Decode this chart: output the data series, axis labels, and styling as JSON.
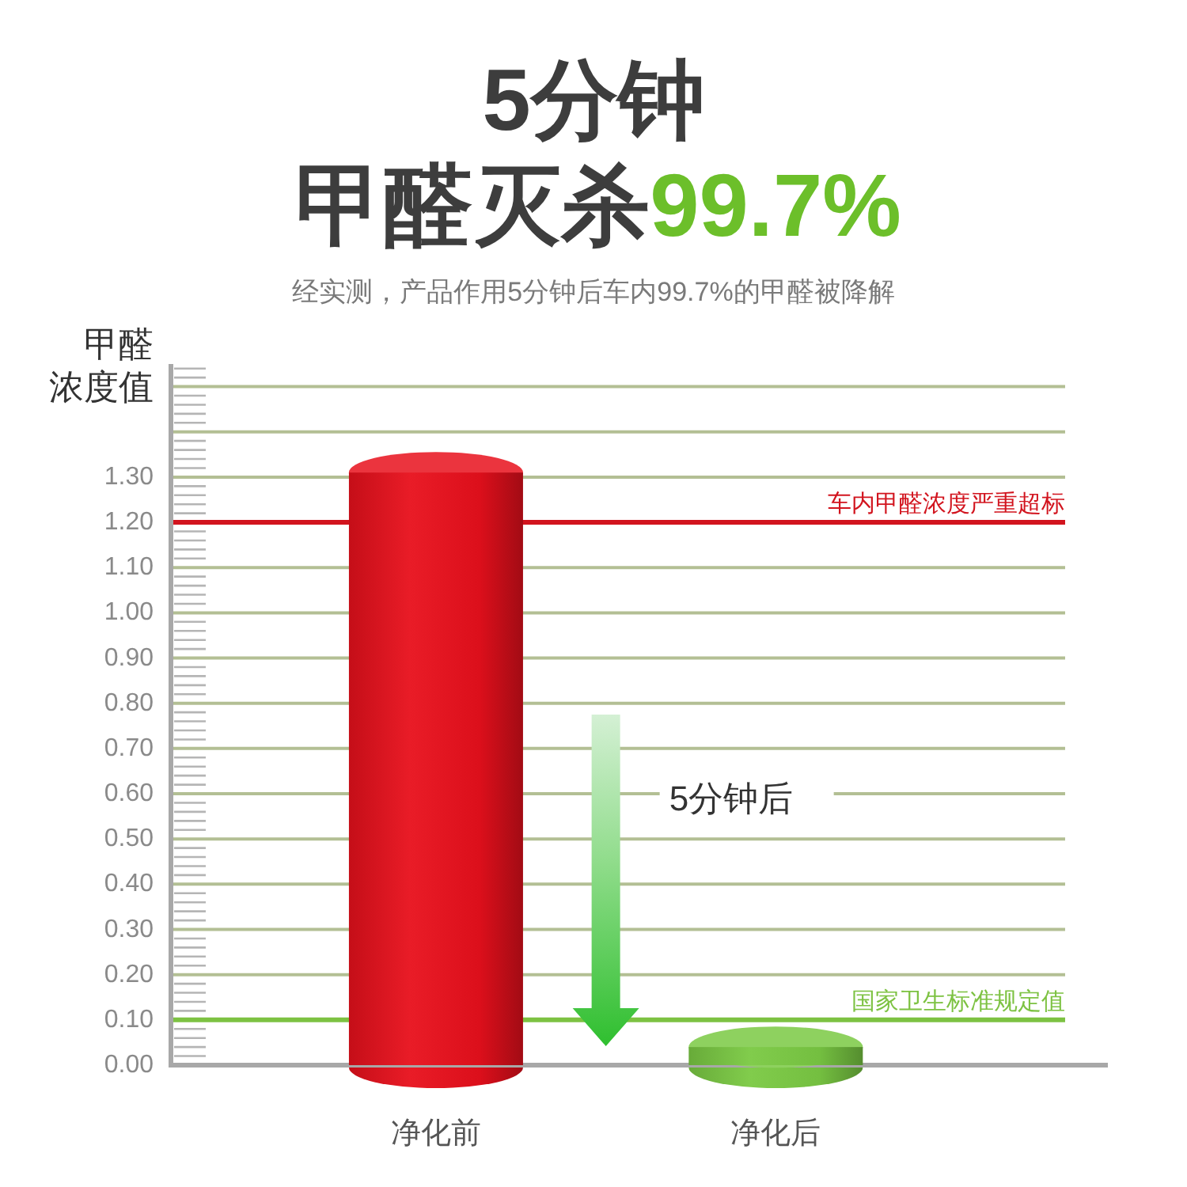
{
  "chart_data": {
    "type": "bar",
    "title": "5分钟",
    "subtitle": "甲醛灭杀99.7%",
    "ylabel": "甲醛浓度值",
    "categories": [
      "净化前",
      "净化后"
    ],
    "values": [
      1.31,
      0.04
    ],
    "colors": [
      "#e8101c",
      "#7ac943"
    ],
    "ylim": [
      0,
      1.55
    ],
    "yticks": [
      {
        "value": 0,
        "label": "0.00"
      },
      {
        "value": 0.1,
        "label": "0.10"
      },
      {
        "value": 0.2,
        "label": "0.20"
      },
      {
        "value": 0.3,
        "label": "0.30"
      },
      {
        "value": 0.4,
        "label": "0.40"
      },
      {
        "value": 0.5,
        "label": "0.50"
      },
      {
        "value": 0.6,
        "label": "0.60"
      },
      {
        "value": 0.7,
        "label": "0.70"
      },
      {
        "value": 0.8,
        "label": "0.80"
      },
      {
        "value": 0.9,
        "label": "0.90"
      },
      {
        "value": 1,
        "label": "1.00"
      },
      {
        "value": 1.1,
        "label": "1.10"
      },
      {
        "value": 1.2,
        "label": "1.20"
      },
      {
        "value": 1.3,
        "label": "1.30"
      },
      {
        "value": 1.4,
        "label": null
      },
      {
        "value": 1.5,
        "label": null
      }
    ],
    "grid": "y",
    "ref_lines": [
      {
        "axis": "y",
        "value": 1.2,
        "label": "车内甲醛浓度严重超标",
        "color": "#d2141e"
      },
      {
        "axis": "y",
        "value": 0.1,
        "label": "国家卫生标准规定值",
        "color": "#7dc242"
      }
    ],
    "annotations": [
      "经实测，产品作用5分钟后车内99.7%的甲醛被降解",
      "5分钟后"
    ]
  }
}
